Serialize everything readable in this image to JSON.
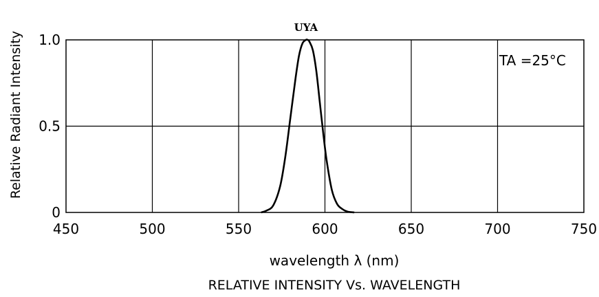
{
  "chart_data": {
    "type": "line",
    "title": "RELATIVE INTENSITY Vs. WAVELENGTH",
    "xlabel": "wavelength λ (nm)",
    "ylabel": "Relative Radiant Intensity",
    "xlim": [
      450,
      750
    ],
    "ylim": [
      0,
      1.0
    ],
    "x_ticks": [
      "450",
      "500",
      "550",
      "600",
      "650",
      "700",
      "750"
    ],
    "y_ticks": [
      "0",
      "0.5",
      "1.0"
    ],
    "grid": true,
    "annotation": "TA =25°C",
    "series": [
      {
        "name": "UYA",
        "color": "#000000",
        "x": [
          563,
          566,
          570,
          574,
          577,
          580,
          583,
          585,
          587,
          589,
          590,
          591,
          593,
          595,
          597,
          599,
          601,
          604,
          607,
          610,
          613,
          617
        ],
        "y": [
          0.0,
          0.01,
          0.04,
          0.15,
          0.32,
          0.55,
          0.78,
          0.91,
          0.98,
          1.0,
          1.0,
          0.99,
          0.94,
          0.82,
          0.64,
          0.46,
          0.3,
          0.13,
          0.05,
          0.02,
          0.005,
          0.0
        ]
      }
    ]
  }
}
